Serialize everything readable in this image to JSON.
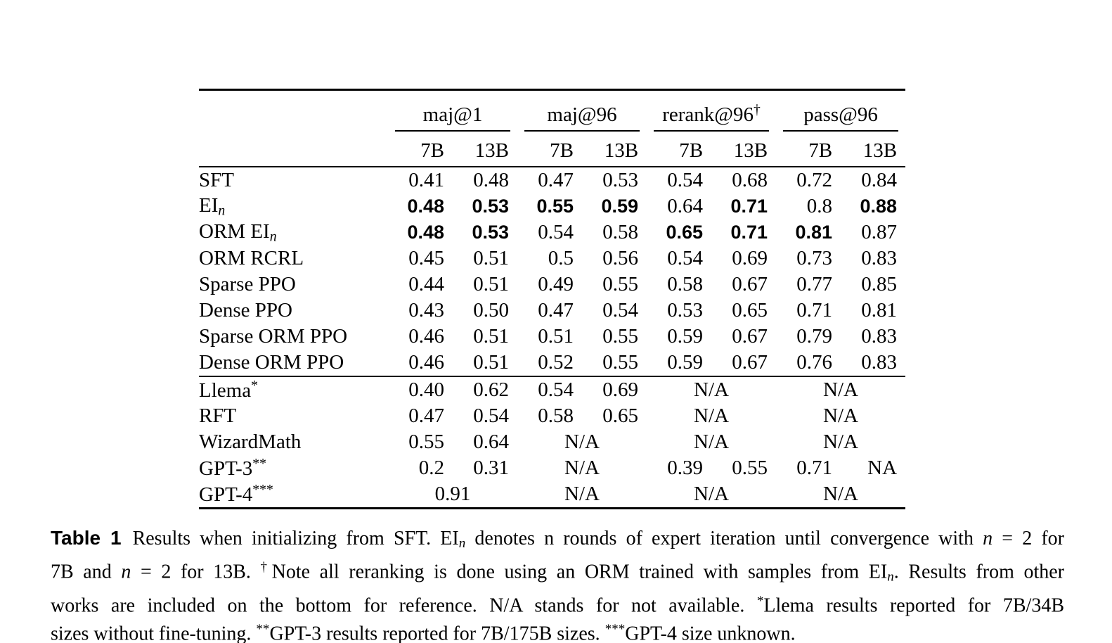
{
  "table": {
    "groups": [
      {
        "label": "maj@1",
        "sup": ""
      },
      {
        "label": "maj@96",
        "sup": ""
      },
      {
        "label": "rerank@96",
        "sup": "†"
      },
      {
        "label": "pass@96",
        "sup": ""
      }
    ],
    "sub_headers": [
      "7B",
      "13B",
      "7B",
      "13B",
      "7B",
      "13B",
      "7B",
      "13B"
    ],
    "sections": [
      {
        "name": "main-results",
        "rows": [
          {
            "label": {
              "text": "SFT",
              "sub": "",
              "sup": ""
            },
            "cells": [
              {
                "t": "0.41"
              },
              {
                "t": "0.48"
              },
              {
                "t": "0.47"
              },
              {
                "t": "0.53"
              },
              {
                "t": "0.54"
              },
              {
                "t": "0.68"
              },
              {
                "t": "0.72"
              },
              {
                "t": "0.84"
              }
            ]
          },
          {
            "label": {
              "text": "EI",
              "sub": "n",
              "sup": ""
            },
            "cells": [
              {
                "t": "0.48",
                "b": true
              },
              {
                "t": "0.53",
                "b": true
              },
              {
                "t": "0.55",
                "b": true
              },
              {
                "t": "0.59",
                "b": true
              },
              {
                "t": "0.64"
              },
              {
                "t": "0.71",
                "b": true
              },
              {
                "t": "0.8"
              },
              {
                "t": "0.88",
                "b": true
              }
            ]
          },
          {
            "label": {
              "text": "ORM EI",
              "sub": "n",
              "sup": ""
            },
            "cells": [
              {
                "t": "0.48",
                "b": true
              },
              {
                "t": "0.53",
                "b": true
              },
              {
                "t": "0.54"
              },
              {
                "t": "0.58"
              },
              {
                "t": "0.65",
                "b": true
              },
              {
                "t": "0.71",
                "b": true
              },
              {
                "t": "0.81",
                "b": true
              },
              {
                "t": "0.87"
              }
            ]
          },
          {
            "label": {
              "text": "ORM RCRL",
              "sub": "",
              "sup": ""
            },
            "cells": [
              {
                "t": "0.45"
              },
              {
                "t": "0.51"
              },
              {
                "t": "0.5"
              },
              {
                "t": "0.56"
              },
              {
                "t": "0.54"
              },
              {
                "t": "0.69"
              },
              {
                "t": "0.73"
              },
              {
                "t": "0.83"
              }
            ]
          },
          {
            "label": {
              "text": "Sparse PPO",
              "sub": "",
              "sup": ""
            },
            "cells": [
              {
                "t": "0.44"
              },
              {
                "t": "0.51"
              },
              {
                "t": "0.49"
              },
              {
                "t": "0.55"
              },
              {
                "t": "0.58"
              },
              {
                "t": "0.67"
              },
              {
                "t": "0.77"
              },
              {
                "t": "0.85"
              }
            ]
          },
          {
            "label": {
              "text": "Dense PPO",
              "sub": "",
              "sup": ""
            },
            "cells": [
              {
                "t": "0.43"
              },
              {
                "t": "0.50"
              },
              {
                "t": "0.47"
              },
              {
                "t": "0.54"
              },
              {
                "t": "0.53"
              },
              {
                "t": "0.65"
              },
              {
                "t": "0.71"
              },
              {
                "t": "0.81"
              }
            ]
          },
          {
            "label": {
              "text": "Sparse ORM PPO",
              "sub": "",
              "sup": ""
            },
            "cells": [
              {
                "t": "0.46"
              },
              {
                "t": "0.51"
              },
              {
                "t": "0.51"
              },
              {
                "t": "0.55"
              },
              {
                "t": "0.59"
              },
              {
                "t": "0.67"
              },
              {
                "t": "0.79"
              },
              {
                "t": "0.83"
              }
            ]
          },
          {
            "label": {
              "text": "Dense ORM PPO",
              "sub": "",
              "sup": ""
            },
            "cells": [
              {
                "t": "0.46"
              },
              {
                "t": "0.51"
              },
              {
                "t": "0.52"
              },
              {
                "t": "0.55"
              },
              {
                "t": "0.59"
              },
              {
                "t": "0.67"
              },
              {
                "t": "0.76"
              },
              {
                "t": "0.83"
              }
            ]
          }
        ]
      },
      {
        "name": "reference-results",
        "rows": [
          {
            "label": {
              "text": "Llema",
              "sub": "",
              "sup": "*"
            },
            "cells": [
              {
                "t": "0.40"
              },
              {
                "t": "0.62"
              },
              {
                "t": "0.54"
              },
              {
                "t": "0.69"
              },
              {
                "t": "N/A",
                "span": 2
              },
              {
                "t": "N/A",
                "span": 2
              }
            ]
          },
          {
            "label": {
              "text": "RFT",
              "sub": "",
              "sup": ""
            },
            "cells": [
              {
                "t": "0.47"
              },
              {
                "t": "0.54"
              },
              {
                "t": "0.58"
              },
              {
                "t": "0.65"
              },
              {
                "t": "N/A",
                "span": 2
              },
              {
                "t": "N/A",
                "span": 2
              }
            ]
          },
          {
            "label": {
              "text": "WizardMath",
              "sub": "",
              "sup": ""
            },
            "cells": [
              {
                "t": "0.55"
              },
              {
                "t": "0.64"
              },
              {
                "t": "N/A",
                "span": 2
              },
              {
                "t": "N/A",
                "span": 2
              },
              {
                "t": "N/A",
                "span": 2
              }
            ]
          },
          {
            "label": {
              "text": "GPT-3",
              "sub": "",
              "sup": "**"
            },
            "cells": [
              {
                "t": "0.2"
              },
              {
                "t": "0.31"
              },
              {
                "t": "N/A",
                "span": 2
              },
              {
                "t": "0.39"
              },
              {
                "t": "0.55"
              },
              {
                "t": "0.71"
              },
              {
                "t": "NA"
              }
            ]
          },
          {
            "label": {
              "text": "GPT-4",
              "sub": "",
              "sup": "***"
            },
            "cells": [
              {
                "t": "0.91",
                "span": 2
              },
              {
                "t": "N/A",
                "span": 2
              },
              {
                "t": "N/A",
                "span": 2
              },
              {
                "t": "N/A",
                "span": 2
              }
            ]
          }
        ]
      }
    ]
  },
  "caption": {
    "lines": [
      [
        {
          "t": "Table 1",
          "s": "tlabel"
        },
        {
          "t": "Results when initializing from SFT. EI",
          "s": "r"
        },
        {
          "t": "n",
          "s": "subi"
        },
        {
          "t": " denotes n rounds of expert iteration until convergence with ",
          "s": "r"
        },
        {
          "t": "n",
          "s": "i"
        },
        {
          "t": " = 2 for",
          "s": "r"
        }
      ],
      [
        {
          "t": "7B and ",
          "s": "r"
        },
        {
          "t": "n",
          "s": "i"
        },
        {
          "t": " = 2 for 13B. ",
          "s": "r"
        },
        {
          "t": "†",
          "s": "sup"
        },
        {
          "t": "Note all reranking is done using an ORM trained with samples from EI",
          "s": "r"
        },
        {
          "t": "n",
          "s": "subi"
        },
        {
          "t": ". Results from other",
          "s": "r"
        }
      ],
      [
        {
          "t": "works are included on the bottom for reference. N/A stands for not available. ",
          "s": "r"
        },
        {
          "t": "*",
          "s": "sup"
        },
        {
          "t": "Llema results reported for 7B/34B",
          "s": "r"
        }
      ],
      [
        {
          "t": "sizes without fine-tuning. ",
          "s": "r"
        },
        {
          "t": "**",
          "s": "sup"
        },
        {
          "t": "GPT-3 results reported for 7B/175B sizes. ",
          "s": "r"
        },
        {
          "t": "***",
          "s": "sup"
        },
        {
          "t": "GPT-4 size unknown.",
          "s": "r"
        }
      ]
    ]
  },
  "colors": {
    "text": "#000000",
    "background": "#ffffff",
    "rule": "#000000"
  }
}
